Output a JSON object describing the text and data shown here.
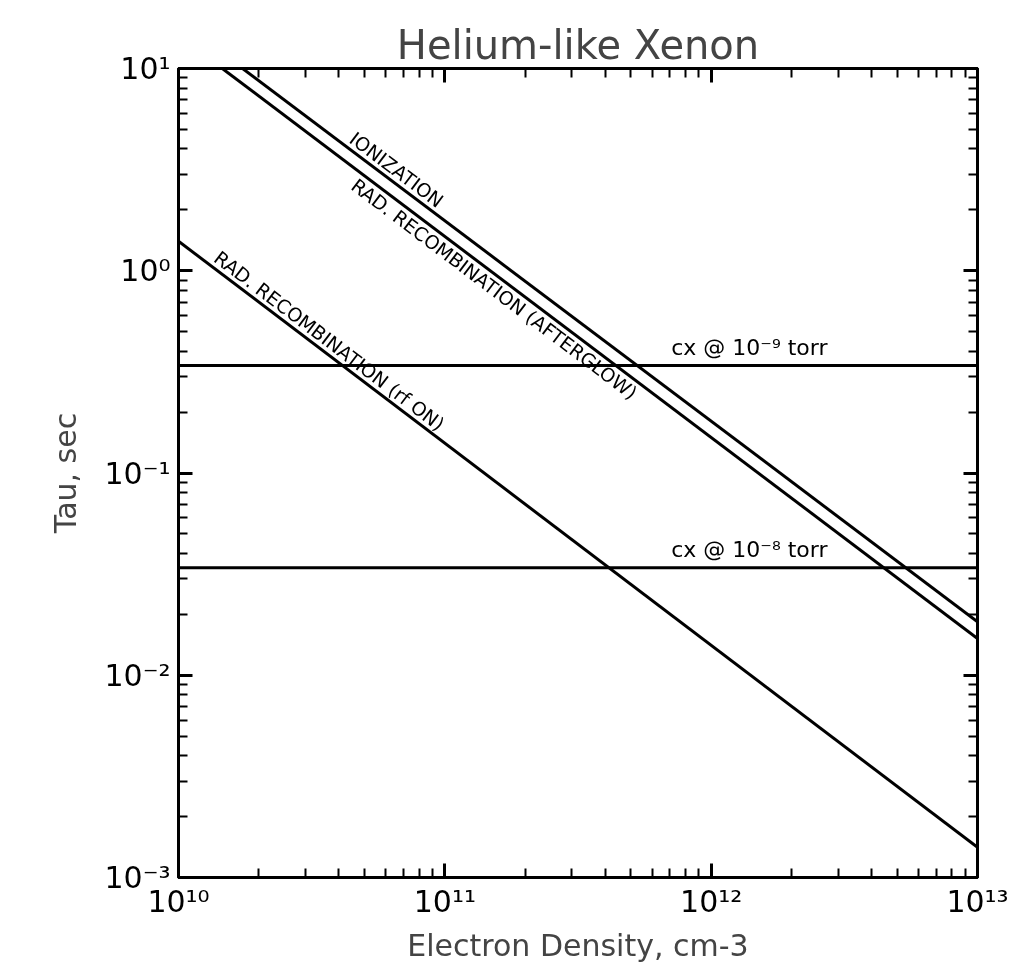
{
  "chart_data": {
    "type": "line",
    "title": "Helium-like Xenon",
    "xlabel": "Electron Density, cm-3",
    "ylabel": "Tau, sec",
    "log": "xy",
    "grid": false,
    "marker": "none",
    "line_style": "solid",
    "xlim": [
      10000000000.0,
      10000000000000.0
    ],
    "ylim": [
      0.001,
      10
    ],
    "xticks": [
      {
        "value": 10000000000.0,
        "label": "10¹⁰"
      },
      {
        "value": 100000000000.0,
        "label": "10¹¹"
      },
      {
        "value": 1000000000000.0,
        "label": "10¹²"
      },
      {
        "value": 10000000000000.0,
        "label": "10¹³"
      }
    ],
    "yticks": [
      {
        "value": 0.001,
        "label": "10⁻³"
      },
      {
        "value": 0.01,
        "label": "10⁻²"
      },
      {
        "value": 0.1,
        "label": "10⁻¹"
      },
      {
        "value": 1,
        "label": "10⁰"
      },
      {
        "value": 10,
        "label": "10¹"
      }
    ],
    "series": [
      {
        "name": "IONIZATION",
        "color": "#000000",
        "x": [
          17400000000.0,
          10000000000000.0
        ],
        "values": [
          10,
          0.0184
        ]
      },
      {
        "name": "RAD. RECOMBINATION (AFTERGLOW)",
        "color": "#000000",
        "x": [
          14600000000.0,
          10000000000000.0
        ],
        "values": [
          10,
          0.0152
        ]
      },
      {
        "name": "RAD. RECOMBINATION (rf ON)",
        "color": "#000000",
        "x": [
          10000000000.0,
          10000000000000.0
        ],
        "values": [
          1.4,
          0.00141
        ]
      }
    ],
    "ref_lines": [
      {
        "axis": "y",
        "value": 0.34,
        "label": "cx @ 10⁻⁹ torr",
        "color": "#000000"
      },
      {
        "axis": "y",
        "value": 0.034,
        "label": "cx @ 10⁻⁸ torr",
        "color": "#000000"
      }
    ]
  }
}
